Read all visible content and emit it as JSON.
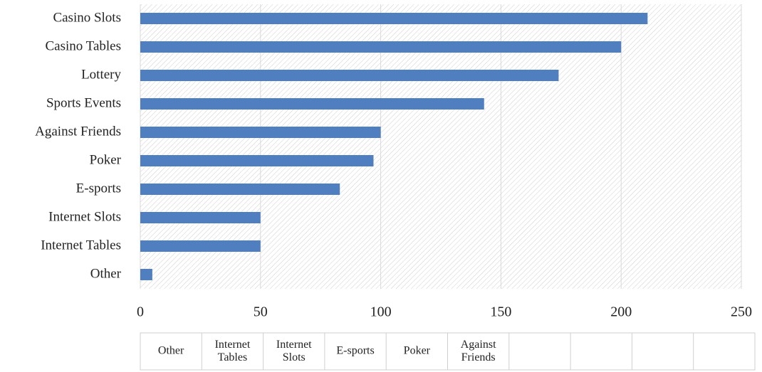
{
  "chart_data": {
    "type": "bar",
    "orientation": "horizontal",
    "categories": [
      "Other",
      "Internet Tables",
      "Internet Slots",
      "E-sports",
      "Poker",
      "Against Friends",
      "Sports Events",
      "Lottery",
      "Casino Tables",
      "Casino Slots"
    ],
    "values": [
      5,
      50,
      50,
      83,
      97,
      100,
      143,
      174,
      200,
      211
    ],
    "color": "#4f7fbf",
    "xlim": [
      0,
      250
    ],
    "xticks": [
      0,
      50,
      100,
      150,
      200,
      250
    ],
    "grid": true,
    "data_table": [
      "Other",
      "Internet Tables",
      "Internet Slots",
      "E-sports",
      "Poker",
      "Against Friends",
      null,
      null,
      null,
      null
    ]
  }
}
